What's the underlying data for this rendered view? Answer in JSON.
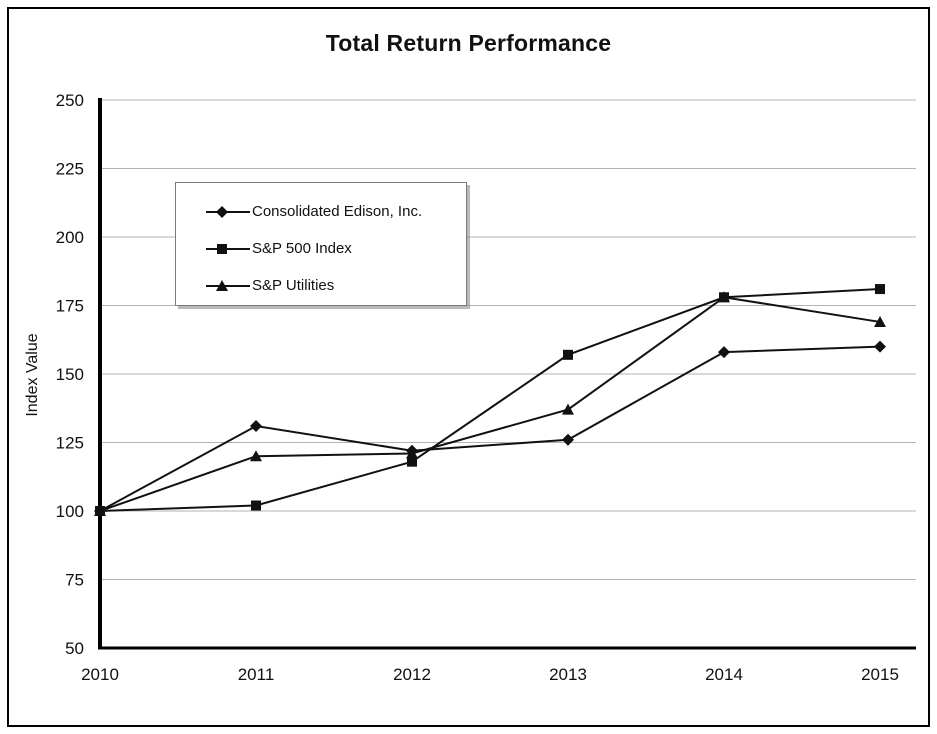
{
  "chart_data": {
    "type": "line",
    "title": "Total Return Performance",
    "xlabel": "",
    "ylabel": "Index Value",
    "x": [
      2010,
      2011,
      2012,
      2013,
      2014,
      2015
    ],
    "series": [
      {
        "name": "Consolidated Edison, Inc.",
        "marker": "diamond",
        "values": [
          100,
          131,
          122,
          126,
          158,
          160
        ]
      },
      {
        "name": "S&P 500 Index",
        "marker": "square",
        "values": [
          100,
          102,
          118,
          157,
          178,
          181
        ]
      },
      {
        "name": "S&P Utilities",
        "marker": "triangle",
        "values": [
          100,
          120,
          121,
          137,
          178,
          169
        ]
      }
    ],
    "ylim": [
      50,
      250
    ],
    "ytick_step": 25,
    "grid": true,
    "legend_position": "upper-left",
    "line_color": "#111111",
    "grid_color": "#b3b3b3"
  }
}
